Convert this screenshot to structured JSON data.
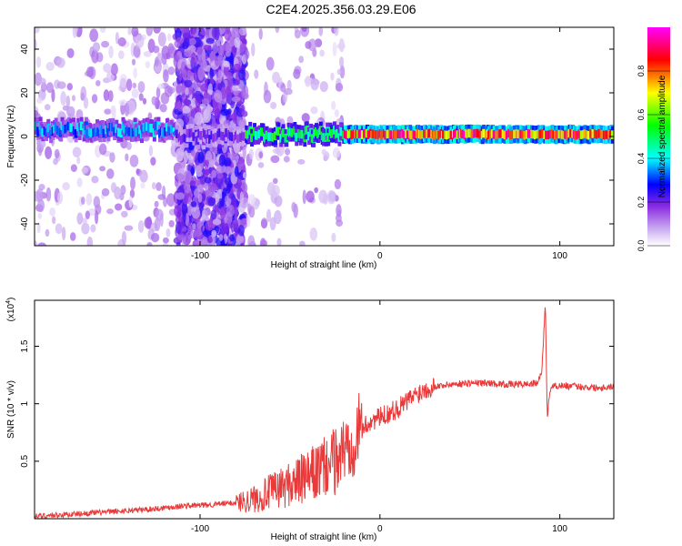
{
  "figure_title": "C2E4.2025.356.03.29.E06",
  "chart_data": [
    {
      "type": "heatmap",
      "title": "",
      "xlabel": "Height of straight line (km)",
      "ylabel": "Frequency (Hz)",
      "xlim": [
        -192,
        130
      ],
      "ylim": [
        -50,
        50
      ],
      "x_ticks": [
        -100,
        0,
        100
      ],
      "y_ticks": [
        -40,
        -20,
        0,
        20,
        40
      ],
      "colorbar": {
        "label": "Normalized spectral amplitude",
        "range": [
          0.0,
          1.0
        ],
        "ticks": [
          0.0,
          0.2,
          0.4,
          0.6,
          0.8
        ],
        "colormap": [
          "#ffffff",
          "#8a2be2",
          "#0000ff",
          "#00ffff",
          "#00ff00",
          "#ffff00",
          "#ff0000",
          "#ff00ff"
        ]
      },
      "regions": [
        {
          "x": [
            -192,
            -113
          ],
          "band_center_hz": 3,
          "band_amplitude": 0.35,
          "scatter": "sparse"
        },
        {
          "x": [
            -113,
            -75
          ],
          "band_center_hz": 0,
          "band_amplitude": 0.2,
          "scatter": "dense"
        },
        {
          "x": [
            -75,
            -20
          ],
          "band_center_hz": 1,
          "band_amplitude": 0.5,
          "scatter": "light"
        },
        {
          "x": [
            -20,
            130
          ],
          "band_center_hz": 1,
          "band_amplitude": 0.8,
          "scatter": "none"
        }
      ]
    },
    {
      "type": "line",
      "title": "",
      "xlabel": "Height of straight line (km)",
      "ylabel": "SNR (10 * v/v)",
      "y_multiplier": "(x10^4)",
      "multiplier_base": "(x10",
      "multiplier_exp": "4",
      "multiplier_close": ")",
      "xlim": [
        -192,
        130
      ],
      "ylim": [
        0,
        1.9
      ],
      "x_ticks": [
        -100,
        0,
        100
      ],
      "y_ticks": [
        0.5,
        1.0,
        1.5
      ],
      "color": "#e83a3a",
      "series": [
        {
          "x": [
            -192,
            -170,
            -150,
            -130,
            -110,
            -95,
            -80,
            -70,
            -60,
            -50,
            -40,
            -30,
            -25,
            -20,
            -15,
            -10,
            -5,
            0,
            5,
            10,
            15,
            20,
            25,
            30,
            40,
            50,
            60,
            70,
            80,
            88,
            90,
            92,
            93,
            94,
            95,
            100,
            110,
            120,
            130
          ],
          "values": [
            0.02,
            0.04,
            0.06,
            0.08,
            0.11,
            0.12,
            0.14,
            0.17,
            0.24,
            0.3,
            0.36,
            0.45,
            0.5,
            0.6,
            0.7,
            0.78,
            0.85,
            0.88,
            0.92,
            0.96,
            1.02,
            1.08,
            1.13,
            1.15,
            1.17,
            1.18,
            1.18,
            1.17,
            1.17,
            1.18,
            1.3,
            1.88,
            0.85,
            1.05,
            1.15,
            1.16,
            1.15,
            1.14,
            1.15
          ]
        }
      ]
    }
  ]
}
